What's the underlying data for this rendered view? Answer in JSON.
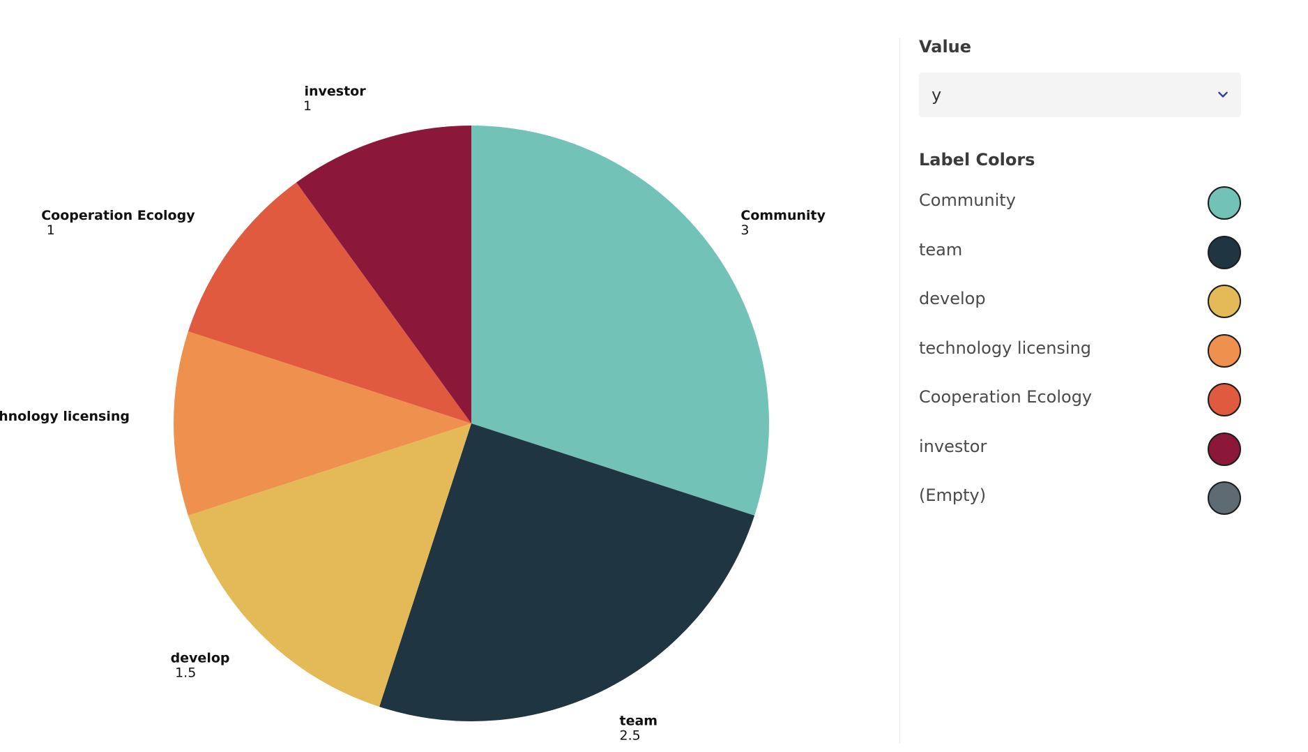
{
  "chart_data": {
    "type": "pie",
    "slices": [
      {
        "label": "Community",
        "value": 3,
        "color": "#72C2B8"
      },
      {
        "label": "team",
        "value": 2.5,
        "color": "#1F3541"
      },
      {
        "label": "develop",
        "value": 1.5,
        "color": "#E4B957"
      },
      {
        "label": "technology licensing",
        "value": 1,
        "color": "#EF914E"
      },
      {
        "label": "Cooperation Ecology",
        "value": 1,
        "color": "#E05A40"
      },
      {
        "label": "investor",
        "value": 1,
        "color": "#8B1838"
      }
    ],
    "start_angle": "12 o'clock",
    "direction": "clockwise"
  },
  "panel": {
    "value_title": "Value",
    "value_select": "y",
    "chevron_icon": "chevron-down-icon",
    "chevron_color": "#2f3e9e",
    "label_colors_title": "Label Colors",
    "legend": [
      {
        "label": "Community",
        "color": "#72C2B8"
      },
      {
        "label": "team",
        "color": "#1F3541"
      },
      {
        "label": "develop",
        "color": "#E4B957"
      },
      {
        "label": "technology licensing",
        "color": "#EF914E"
      },
      {
        "label": "Cooperation Ecology",
        "color": "#E05A40"
      },
      {
        "label": "investor",
        "color": "#8B1838"
      },
      {
        "label": "(Empty)",
        "color": "#5E6B73"
      }
    ]
  }
}
